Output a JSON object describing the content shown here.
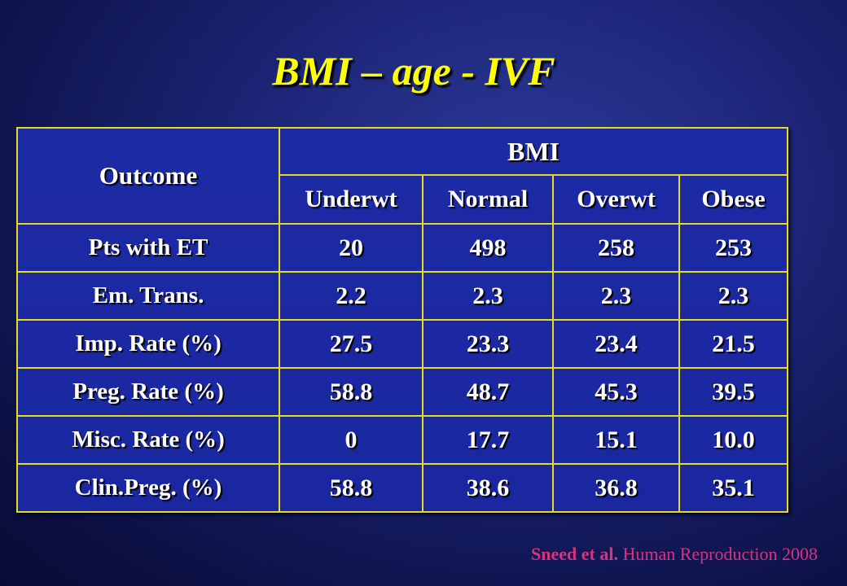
{
  "title": "BMI – age - IVF",
  "table": {
    "outcome_header": "Outcome",
    "group_header": "BMI",
    "columns": [
      "Underwt",
      "Normal",
      "Overwt",
      "Obese"
    ],
    "rows": [
      {
        "label": "Pts with ET",
        "values": [
          "20",
          "498",
          "258",
          "253"
        ]
      },
      {
        "label": "Em. Trans.",
        "values": [
          "2.2",
          "2.3",
          "2.3",
          "2.3"
        ]
      },
      {
        "label": "Imp. Rate (%)",
        "values": [
          "27.5",
          "23.3",
          "23.4",
          "21.5"
        ]
      },
      {
        "label": "Preg. Rate (%)",
        "values": [
          "58.8",
          "48.7",
          "45.3",
          "39.5"
        ]
      },
      {
        "label": "Misc. Rate (%)",
        "values": [
          "0",
          "17.7",
          "15.1",
          "10.0"
        ]
      },
      {
        "label": "Clin.Preg. (%)",
        "values": [
          "58.8",
          "38.6",
          "36.8",
          "35.1"
        ]
      }
    ]
  },
  "citation": {
    "authors": "Sneed et al.",
    "source": "Human Reproduction 2008"
  },
  "colors": {
    "title": "#ffff00",
    "table_fill": "#1c2aa4",
    "table_border": "#e6dc1e",
    "citation": "#d8337f",
    "background": "#1c2577"
  }
}
